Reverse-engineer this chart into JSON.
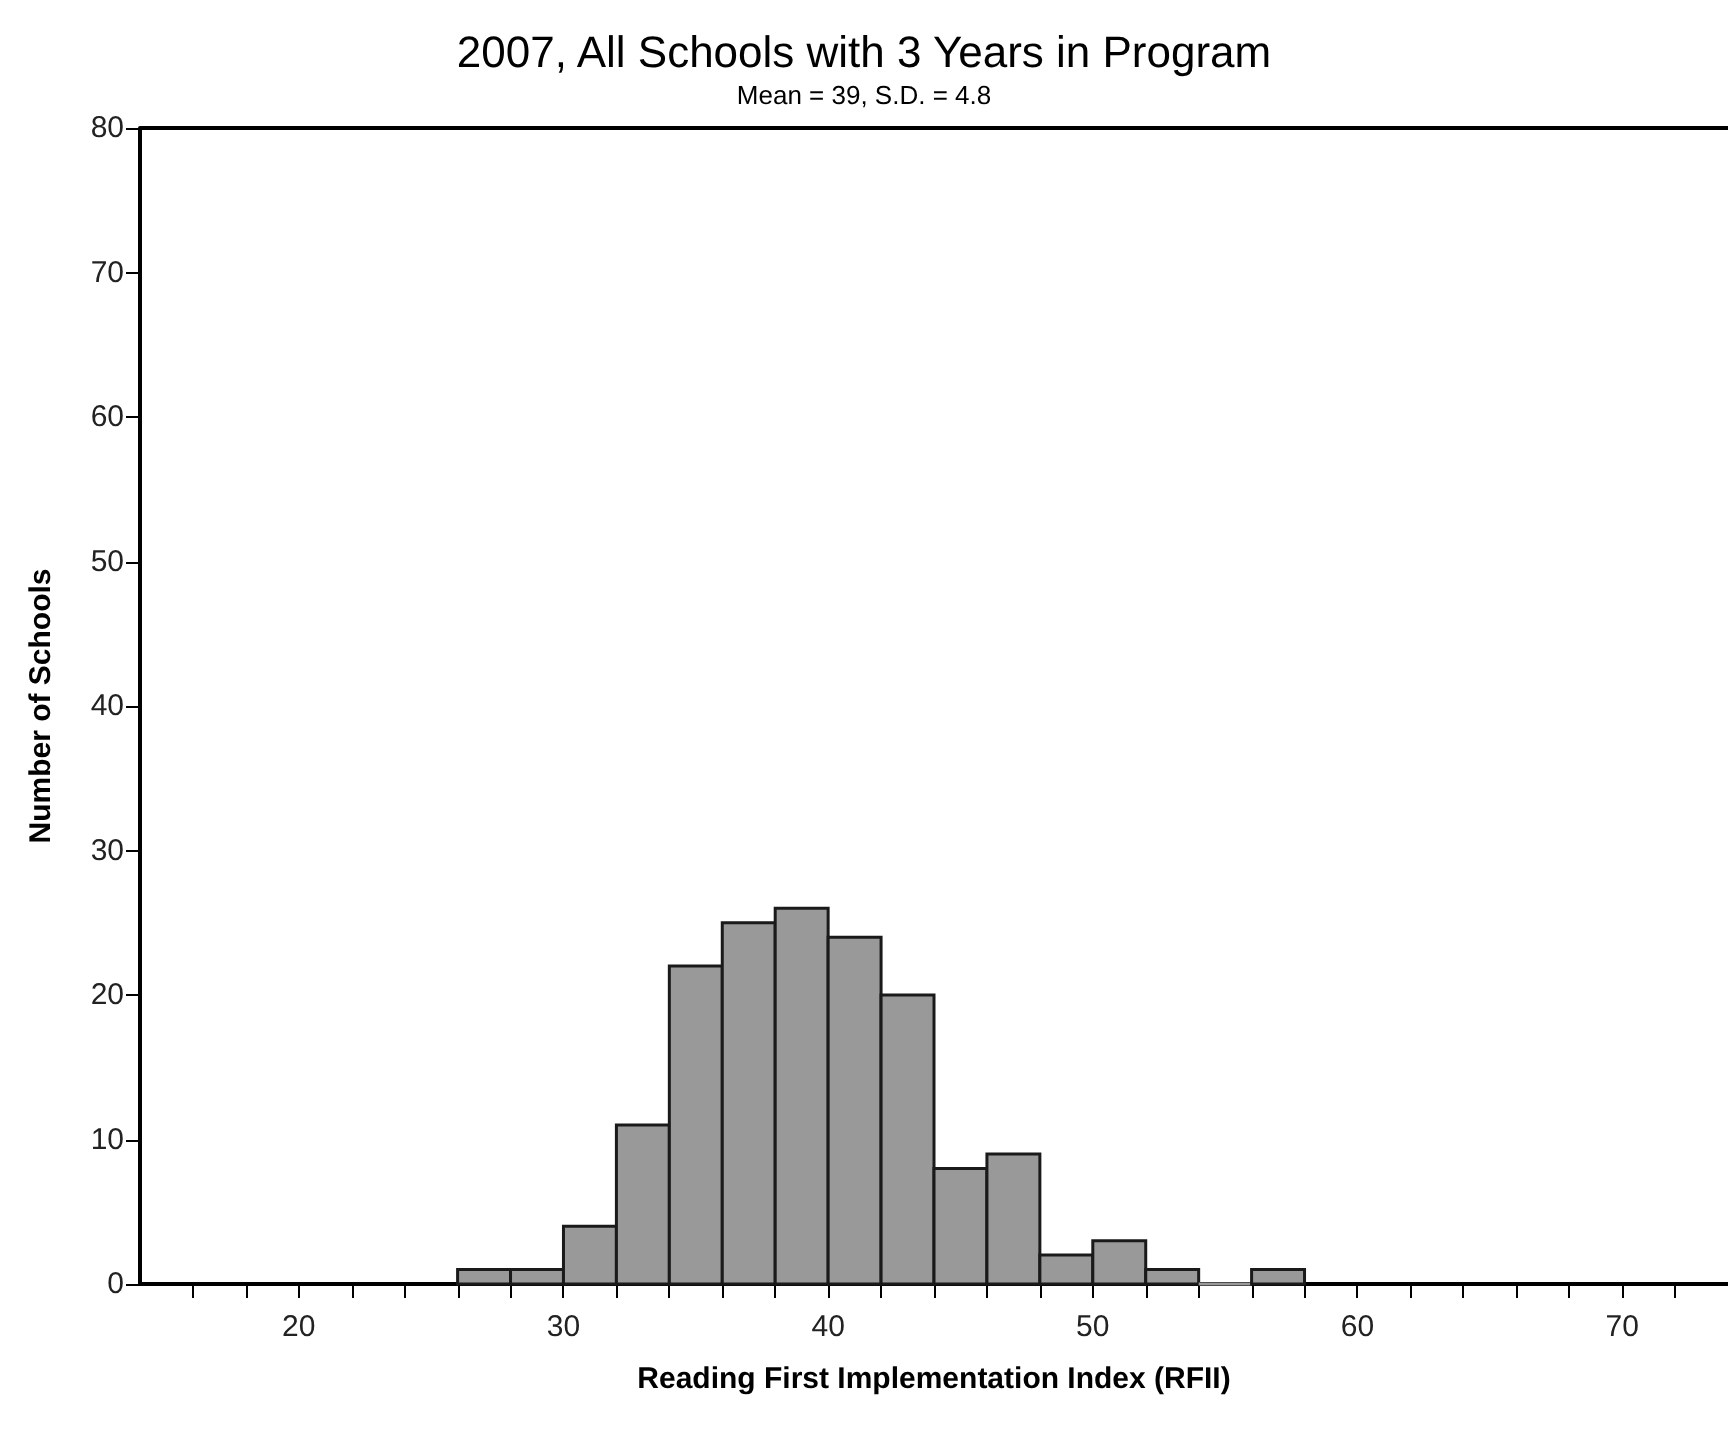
{
  "chart_data": {
    "type": "histogram",
    "title": "2007, All Schools with 3 Years in Program",
    "subtitle": "Mean = 39, S.D. = 4.8",
    "xlabel": "Reading First Implementation Index (RFII)",
    "ylabel": "Number of Schools",
    "bins": [
      26,
      28,
      30,
      32,
      34,
      36,
      38,
      40,
      42,
      44,
      46,
      48,
      50,
      52,
      54,
      56,
      58
    ],
    "values": [
      1,
      1,
      4,
      11,
      22,
      25,
      26,
      24,
      20,
      8,
      9,
      2,
      3,
      1,
      0,
      1
    ],
    "color": "#999999",
    "xlim": [
      14,
      74
    ],
    "xticks": [
      {
        "value": 16,
        "label": null
      },
      {
        "value": 18,
        "label": null
      },
      20,
      {
        "value": 22,
        "label": null
      },
      {
        "value": 24,
        "label": null
      },
      {
        "value": 26,
        "label": null
      },
      {
        "value": 28,
        "label": null
      },
      30,
      {
        "value": 32,
        "label": null
      },
      {
        "value": 34,
        "label": null
      },
      {
        "value": 36,
        "label": null
      },
      {
        "value": 38,
        "label": null
      },
      40,
      {
        "value": 42,
        "label": null
      },
      {
        "value": 44,
        "label": null
      },
      {
        "value": 46,
        "label": null
      },
      {
        "value": 48,
        "label": null
      },
      50,
      {
        "value": 52,
        "label": null
      },
      {
        "value": 54,
        "label": null
      },
      {
        "value": 56,
        "label": null
      },
      {
        "value": 58,
        "label": null
      },
      60,
      {
        "value": 62,
        "label": null
      },
      {
        "value": 64,
        "label": null
      },
      {
        "value": 66,
        "label": null
      },
      {
        "value": 68,
        "label": null
      },
      70,
      {
        "value": 72,
        "label": null
      }
    ],
    "ylim": [
      0,
      80
    ],
    "yticks": [
      0,
      10,
      20,
      30,
      40,
      50,
      60,
      70,
      80
    ],
    "grid": false
  }
}
